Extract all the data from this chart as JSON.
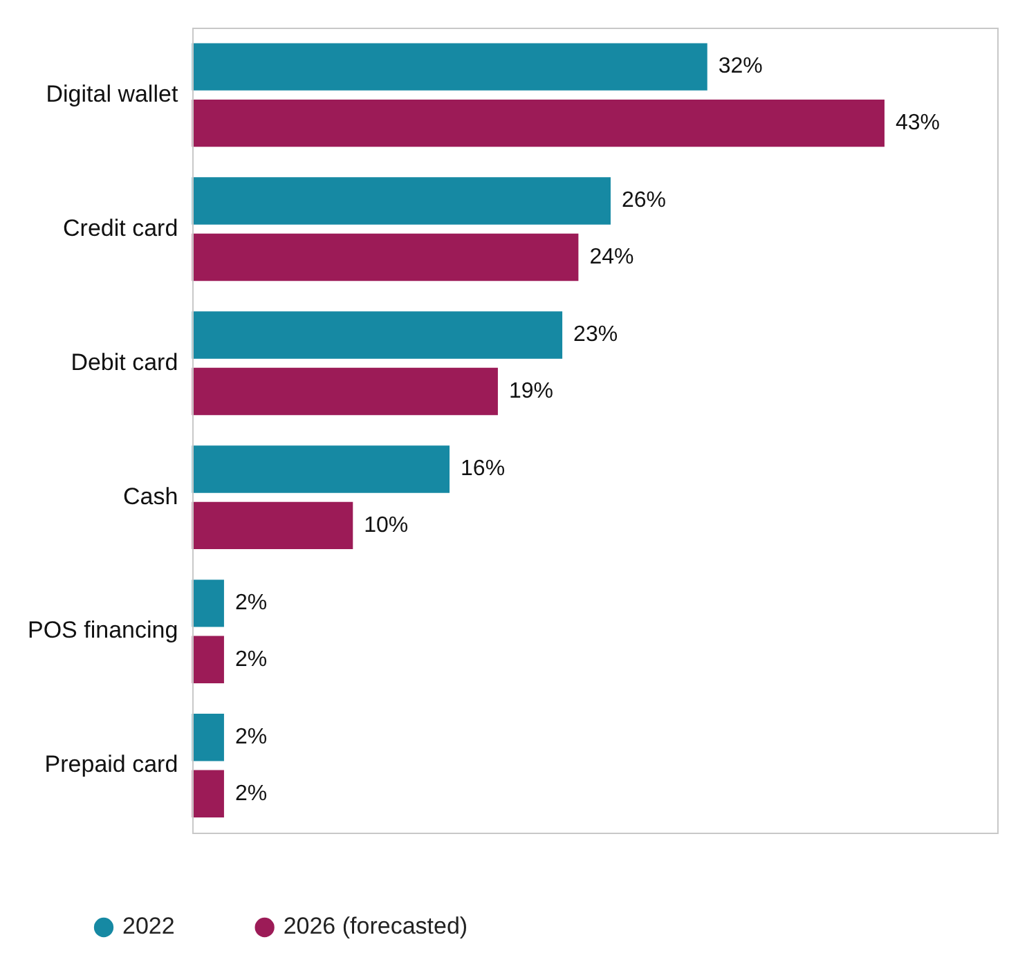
{
  "chart_data": {
    "type": "bar",
    "orientation": "horizontal",
    "categories": [
      "Digital wallet",
      "Credit card",
      "Debit card",
      "Cash",
      "POS financing",
      "Prepaid card"
    ],
    "series": [
      {
        "name": "2022",
        "color": "#1689a3",
        "values": [
          32,
          26,
          23,
          16,
          2,
          2
        ],
        "value_labels": [
          "32%",
          "26%",
          "23%",
          "16%",
          "2%",
          "2%"
        ]
      },
      {
        "name": "2026 (forecasted)",
        "color": "#9c1b57",
        "values": [
          43,
          24,
          19,
          10,
          2,
          2
        ],
        "value_labels": [
          "43%",
          "24%",
          "19%",
          "10%",
          "2%",
          "2%"
        ]
      }
    ],
    "tick_labels": "y",
    "grid": false,
    "legend": "bottom left"
  }
}
